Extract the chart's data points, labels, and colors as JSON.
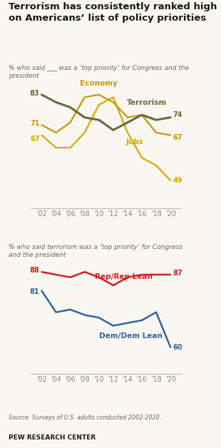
{
  "title": "Terrorism has consistently ranked high\non Americans’ list of policy priorities",
  "subtitle1": "% who said ___ was a ‘top priority’ for Congress and the\npresident",
  "subtitle2": "% who said terrorism was a ‘top priority’ for Congress\nand the president",
  "source": "Source: Surveys of U.S. adults conducted 2002-2020.",
  "footer": "PEW RESEARCH CENTER",
  "years": [
    2002,
    2004,
    2006,
    2008,
    2010,
    2012,
    2014,
    2016,
    2018,
    2020
  ],
  "terrorism": [
    83,
    80,
    78,
    74,
    73,
    69,
    72,
    75,
    73,
    74
  ],
  "economy": [
    71,
    68,
    72,
    82,
    83,
    80,
    74,
    75,
    68,
    67
  ],
  "jobs": [
    67,
    62,
    62,
    68,
    79,
    82,
    68,
    58,
    55,
    49
  ],
  "terrorism_color": "#6b6b3a",
  "economy_color": "#c8960c",
  "jobs_color": "#d4aa00",
  "rep": [
    88,
    87,
    86,
    88,
    86,
    83,
    86,
    87,
    87,
    87
  ],
  "dem": [
    81,
    73,
    74,
    72,
    71,
    68,
    69,
    70,
    73,
    60
  ],
  "rep_color": "#cc2222",
  "dem_color": "#336699",
  "bg_color": "#f9f7f2",
  "title_color": "#1a1a1a",
  "subtitle_color": "#666666",
  "tick_color": "#888888",
  "tick_labels": [
    "'02",
    "'04",
    "'06",
    "'08",
    "'10",
    "'12",
    "'14",
    "'16",
    "'18",
    "'20"
  ]
}
